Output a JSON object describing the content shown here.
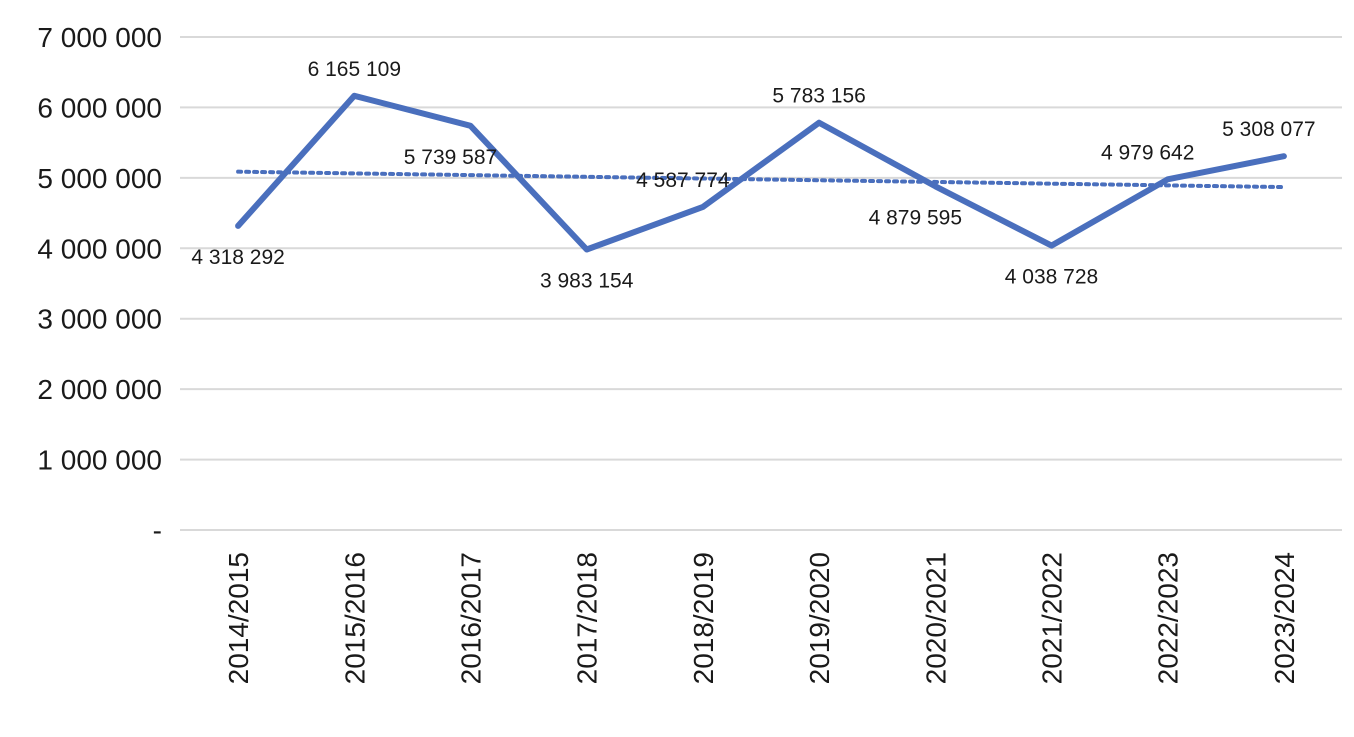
{
  "chart_data": {
    "type": "line",
    "categories": [
      "2014/2015",
      "2015/2016",
      "2016/2017",
      "2017/2018",
      "2018/2019",
      "2019/2020",
      "2020/2021",
      "2021/2022",
      "2022/2023",
      "2023/2024"
    ],
    "series": [
      {
        "values": [
          4318292,
          6165109,
          5739587,
          3983154,
          4587774,
          5783156,
          4879595,
          4038728,
          4979642,
          5308077
        ],
        "labels": [
          "4 318 292",
          "6 165 109",
          "5 739 587",
          "3 983 154",
          "4 587 774",
          "5 783 156",
          "4 879 595",
          "4 038 728",
          "4 979 642",
          "5 308 077"
        ],
        "color": "#4a6fbd"
      }
    ],
    "trendline": {
      "type": "linear",
      "style": "dotted",
      "color": "#4a6fbd"
    },
    "yticks": [
      0,
      1000000,
      2000000,
      3000000,
      4000000,
      5000000,
      6000000,
      7000000
    ],
    "ytick_labels": [
      "-",
      "1 000 000",
      "2 000 000",
      "3 000 000",
      "4 000 000",
      "5 000 000",
      "6 000 000",
      "7 000 000"
    ],
    "ylim": [
      0,
      7000000
    ],
    "grid": true,
    "gridColor": "#d9d9d9",
    "legend": "none"
  }
}
